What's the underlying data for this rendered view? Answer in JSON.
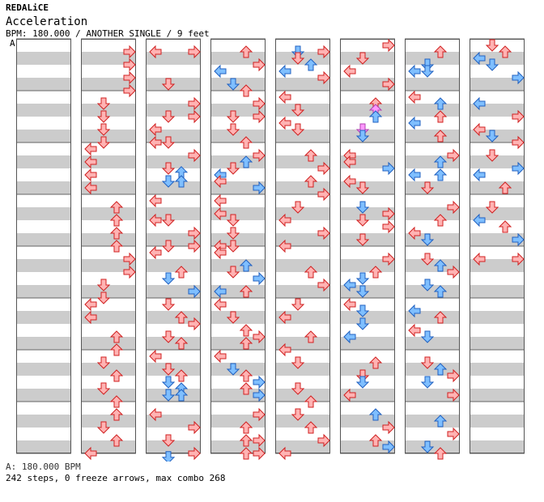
{
  "header": {
    "artist": "REDALiCE",
    "title": "Acceleration",
    "info": "BPM: 180.000 / ANOTHER SINGLE / 9 feet"
  },
  "chart_data": {
    "type": "step-chart",
    "columns": 8,
    "measures_per_column": 8,
    "lanes": [
      "left",
      "down",
      "up",
      "right"
    ],
    "colors": {
      "quarter": "#ffb3b3",
      "eighth": "#7fbfff",
      "sixteenth": "#ff99ff",
      "stroke_red": "#d02020",
      "stroke_blue": "#2060c0"
    },
    "bpm_marker": "A",
    "notes": [
      [],
      [
        [
          1,
          0.5,
          "right",
          4
        ],
        [
          1,
          1.5,
          "right",
          4
        ],
        [
          1,
          2.5,
          "right",
          4
        ],
        [
          1,
          3.5,
          "right",
          4
        ],
        [
          2,
          0.5,
          "down",
          4
        ],
        [
          2,
          1.5,
          "down",
          4
        ],
        [
          2,
          2.5,
          "down",
          4
        ],
        [
          2,
          3.5,
          "down",
          4
        ],
        [
          3,
          0,
          "left",
          4
        ],
        [
          3,
          1,
          "left",
          4
        ],
        [
          3,
          2,
          "left",
          4
        ],
        [
          3,
          3,
          "left",
          4
        ],
        [
          4,
          0.5,
          "up",
          4
        ],
        [
          4,
          1.5,
          "up",
          4
        ],
        [
          4,
          2.5,
          "up",
          4
        ],
        [
          4,
          3.5,
          "up",
          4
        ],
        [
          5,
          0.5,
          "right",
          4
        ],
        [
          5,
          1.5,
          "right",
          4
        ],
        [
          5,
          2.5,
          "down",
          4
        ],
        [
          5,
          3.5,
          "down",
          4
        ],
        [
          6,
          0,
          "left",
          4
        ],
        [
          6,
          1,
          "left",
          4
        ],
        [
          6,
          2.5,
          "up",
          4
        ],
        [
          6,
          3.5,
          "up",
          4
        ],
        [
          7,
          0.5,
          "down",
          4
        ],
        [
          7,
          1.5,
          "up",
          4
        ],
        [
          7,
          2.5,
          "down",
          4
        ],
        [
          7,
          3.5,
          "up",
          4
        ],
        [
          8,
          0.5,
          "up",
          4
        ],
        [
          8,
          1.5,
          "down",
          4
        ],
        [
          8,
          2.5,
          "up",
          4
        ],
        [
          8,
          3.5,
          "left",
          4
        ]
      ],
      [
        [
          1,
          0.5,
          "left",
          4
        ],
        [
          1,
          0.5,
          "right",
          4
        ],
        [
          1,
          3,
          "down",
          4
        ],
        [
          2,
          0.5,
          "right",
          4
        ],
        [
          2,
          1.5,
          "down",
          4
        ],
        [
          2,
          1.5,
          "right",
          4
        ],
        [
          2,
          2.5,
          "left",
          4
        ],
        [
          2,
          3.5,
          "left",
          4
        ],
        [
          2,
          3.5,
          "down",
          4
        ],
        [
          3,
          0.5,
          "right",
          4
        ],
        [
          3,
          1.5,
          "down",
          4
        ],
        [
          3,
          1.8,
          "up",
          8
        ],
        [
          3,
          2.5,
          "down",
          8
        ],
        [
          3,
          2.5,
          "up",
          8
        ],
        [
          4,
          0,
          "left",
          4
        ],
        [
          4,
          1.5,
          "left",
          4
        ],
        [
          4,
          1.5,
          "down",
          4
        ],
        [
          4,
          2.5,
          "right",
          4
        ],
        [
          4,
          3.5,
          "down",
          4
        ],
        [
          4,
          3.5,
          "right",
          4
        ],
        [
          5,
          0,
          "left",
          4
        ],
        [
          5,
          1.5,
          "up",
          4
        ],
        [
          5,
          2,
          "down",
          8
        ],
        [
          5,
          3,
          "right",
          8
        ],
        [
          6,
          0,
          "down",
          4
        ],
        [
          6,
          1,
          "up",
          4
        ],
        [
          6,
          1.5,
          "right",
          4
        ],
        [
          6,
          2.5,
          "down",
          4
        ],
        [
          6,
          3,
          "up",
          4
        ],
        [
          7,
          0,
          "left",
          4
        ],
        [
          7,
          1,
          "down",
          4
        ],
        [
          7,
          1.5,
          "up",
          4
        ],
        [
          7,
          2,
          "down",
          8
        ],
        [
          7,
          2.5,
          "up",
          8
        ],
        [
          7,
          3,
          "down",
          8
        ],
        [
          7,
          3,
          "up",
          8
        ],
        [
          8,
          0.5,
          "left",
          4
        ],
        [
          8,
          1.5,
          "right",
          4
        ],
        [
          8,
          2.5,
          "down",
          4
        ],
        [
          8,
          3.5,
          "right",
          4
        ],
        [
          8,
          3.8,
          "down",
          8
        ]
      ],
      [
        [
          1,
          0.5,
          "up",
          4
        ],
        [
          1,
          1.5,
          "right",
          4
        ],
        [
          1,
          2,
          "left",
          8
        ],
        [
          1,
          3,
          "down",
          8
        ],
        [
          1,
          3.5,
          "up",
          4
        ],
        [
          2,
          0.5,
          "right",
          4
        ],
        [
          2,
          1.5,
          "down",
          4
        ],
        [
          2,
          1.5,
          "right",
          4
        ],
        [
          2,
          2.5,
          "down",
          4
        ],
        [
          2,
          3.5,
          "up",
          4
        ],
        [
          3,
          0.5,
          "right",
          4
        ],
        [
          3,
          1,
          "up",
          8
        ],
        [
          3,
          1.5,
          "down",
          4
        ],
        [
          3,
          2,
          "left",
          8
        ],
        [
          3,
          2.5,
          "left",
          4
        ],
        [
          3,
          3,
          "right",
          8
        ],
        [
          4,
          0,
          "left",
          4
        ],
        [
          4,
          1,
          "left",
          4
        ],
        [
          4,
          1.5,
          "down",
          4
        ],
        [
          4,
          2.5,
          "down",
          4
        ],
        [
          4,
          3.5,
          "left",
          4
        ],
        [
          4,
          3.5,
          "down",
          4
        ],
        [
          5,
          0,
          "left",
          4
        ],
        [
          5,
          1,
          "up",
          8
        ],
        [
          5,
          1.5,
          "down",
          4
        ],
        [
          5,
          2,
          "right",
          8
        ],
        [
          5,
          3,
          "left",
          8
        ],
        [
          5,
          3,
          "up",
          4
        ],
        [
          6,
          0,
          "left",
          4
        ],
        [
          6,
          1,
          "down",
          4
        ],
        [
          6,
          2,
          "up",
          4
        ],
        [
          6,
          2.5,
          "right",
          4
        ],
        [
          6,
          3,
          "up",
          4
        ],
        [
          7,
          0,
          "left",
          4
        ],
        [
          7,
          1,
          "down",
          8
        ],
        [
          7,
          1.5,
          "up",
          4
        ],
        [
          7,
          2,
          "right",
          8
        ],
        [
          7,
          2.5,
          "up",
          4
        ],
        [
          7,
          3,
          "right",
          8
        ],
        [
          8,
          0.5,
          "right",
          4
        ],
        [
          8,
          1.5,
          "up",
          4
        ],
        [
          8,
          2.5,
          "up",
          4
        ],
        [
          8,
          2.5,
          "right",
          4
        ],
        [
          8,
          3.5,
          "up",
          4
        ],
        [
          8,
          3.5,
          "right",
          4
        ]
      ],
      [
        [
          1,
          0.5,
          "down",
          8
        ],
        [
          1,
          0.5,
          "right",
          4
        ],
        [
          1,
          1,
          "down",
          4
        ],
        [
          1,
          1.5,
          "up",
          8
        ],
        [
          1,
          2,
          "left",
          8
        ],
        [
          1,
          2.5,
          "right",
          4
        ],
        [
          2,
          0,
          "left",
          4
        ],
        [
          2,
          1,
          "down",
          4
        ],
        [
          2,
          2,
          "left",
          4
        ],
        [
          2,
          2.5,
          "down",
          4
        ],
        [
          3,
          0.5,
          "up",
          4
        ],
        [
          3,
          1.5,
          "right",
          4
        ],
        [
          3,
          2.5,
          "up",
          4
        ],
        [
          3,
          3.5,
          "right",
          4
        ],
        [
          4,
          0.5,
          "down",
          4
        ],
        [
          4,
          1.5,
          "left",
          4
        ],
        [
          4,
          2.5,
          "right",
          4
        ],
        [
          4,
          3.5,
          "left",
          4
        ],
        [
          5,
          1.5,
          "up",
          4
        ],
        [
          5,
          2.5,
          "right",
          4
        ],
        [
          6,
          0,
          "down",
          4
        ],
        [
          6,
          1,
          "left",
          4
        ],
        [
          6,
          2.5,
          "up",
          4
        ],
        [
          6,
          3.5,
          "left",
          4
        ],
        [
          7,
          0.5,
          "down",
          4
        ],
        [
          7,
          2.5,
          "down",
          4
        ],
        [
          7,
          3.5,
          "up",
          4
        ],
        [
          8,
          0.5,
          "down",
          4
        ],
        [
          8,
          1.5,
          "up",
          4
        ],
        [
          8,
          2.5,
          "right",
          4
        ],
        [
          8,
          3.5,
          "left",
          4
        ]
      ],
      [
        [
          1,
          0,
          "right",
          4
        ],
        [
          1,
          1,
          "down",
          4
        ],
        [
          1,
          2,
          "left",
          4
        ],
        [
          1,
          3,
          "right",
          4
        ],
        [
          2,
          0.5,
          "up",
          4
        ],
        [
          2,
          1,
          "up",
          16
        ],
        [
          2,
          1.5,
          "up",
          8
        ],
        [
          2,
          2.5,
          "down",
          16
        ],
        [
          2,
          3,
          "down",
          8
        ],
        [
          3,
          0.5,
          "left",
          4
        ],
        [
          3,
          1,
          "left",
          4
        ],
        [
          3,
          1.5,
          "right",
          8
        ],
        [
          3,
          2.5,
          "left",
          4
        ],
        [
          3,
          3,
          "down",
          4
        ],
        [
          4,
          0.5,
          "down",
          8
        ],
        [
          4,
          1,
          "right",
          4
        ],
        [
          4,
          1.5,
          "down",
          4
        ],
        [
          4,
          2,
          "right",
          4
        ],
        [
          4,
          3,
          "down",
          4
        ],
        [
          5,
          0.5,
          "right",
          4
        ],
        [
          5,
          1.5,
          "up",
          4
        ],
        [
          5,
          2,
          "down",
          8
        ],
        [
          5,
          2.5,
          "left",
          8
        ],
        [
          5,
          3,
          "down",
          8
        ],
        [
          6,
          0,
          "left",
          4
        ],
        [
          6,
          0.5,
          "down",
          8
        ],
        [
          6,
          1.5,
          "down",
          8
        ],
        [
          6,
          2.5,
          "left",
          8
        ],
        [
          7,
          0.5,
          "up",
          4
        ],
        [
          7,
          1.5,
          "down",
          4
        ],
        [
          7,
          2,
          "down",
          8
        ],
        [
          7,
          3,
          "left",
          4
        ],
        [
          8,
          0.5,
          "up",
          8
        ],
        [
          8,
          1.5,
          "right",
          4
        ],
        [
          8,
          2.5,
          "up",
          4
        ],
        [
          8,
          3,
          "right",
          8
        ]
      ],
      [
        [
          1,
          0.5,
          "up",
          4
        ],
        [
          1,
          1.5,
          "down",
          8
        ],
        [
          1,
          2,
          "left",
          8
        ],
        [
          1,
          2,
          "down",
          8
        ],
        [
          2,
          0,
          "left",
          4
        ],
        [
          2,
          0.5,
          "up",
          8
        ],
        [
          2,
          1.5,
          "up",
          4
        ],
        [
          2,
          2,
          "left",
          8
        ],
        [
          2,
          3,
          "up",
          4
        ],
        [
          3,
          0.5,
          "right",
          4
        ],
        [
          3,
          1,
          "up",
          8
        ],
        [
          3,
          2,
          "left",
          8
        ],
        [
          3,
          2,
          "up",
          8
        ],
        [
          3,
          3,
          "down",
          4
        ],
        [
          4,
          0.5,
          "right",
          4
        ],
        [
          4,
          1.5,
          "up",
          4
        ],
        [
          4,
          2.5,
          "left",
          4
        ],
        [
          4,
          3,
          "down",
          8
        ],
        [
          5,
          0.5,
          "down",
          4
        ],
        [
          5,
          1,
          "up",
          8
        ],
        [
          5,
          1.5,
          "right",
          4
        ],
        [
          5,
          2.5,
          "down",
          8
        ],
        [
          5,
          3,
          "up",
          8
        ],
        [
          6,
          0.5,
          "left",
          8
        ],
        [
          6,
          1,
          "up",
          4
        ],
        [
          6,
          2,
          "left",
          4
        ],
        [
          6,
          2.5,
          "down",
          8
        ],
        [
          7,
          0.5,
          "down",
          4
        ],
        [
          7,
          1,
          "up",
          8
        ],
        [
          7,
          1.5,
          "right",
          4
        ],
        [
          7,
          2,
          "down",
          8
        ],
        [
          7,
          3,
          "right",
          4
        ],
        [
          8,
          1,
          "up",
          8
        ],
        [
          8,
          2,
          "right",
          4
        ],
        [
          8,
          3,
          "down",
          8
        ],
        [
          8,
          3.5,
          "up",
          4
        ]
      ],
      [
        [
          1,
          0,
          "down",
          4
        ],
        [
          1,
          0.5,
          "up",
          4
        ],
        [
          1,
          1,
          "left",
          8
        ],
        [
          1,
          1.5,
          "down",
          8
        ],
        [
          1,
          2.5,
          "right",
          8
        ],
        [
          2,
          0.5,
          "left",
          8
        ],
        [
          2,
          1.5,
          "right",
          4
        ],
        [
          2,
          2.5,
          "left",
          4
        ],
        [
          2,
          3,
          "down",
          8
        ],
        [
          2,
          3.5,
          "right",
          4
        ],
        [
          3,
          0.5,
          "down",
          4
        ],
        [
          3,
          1.5,
          "right",
          8
        ],
        [
          3,
          2,
          "left",
          8
        ],
        [
          3,
          3,
          "up",
          4
        ],
        [
          4,
          0.5,
          "down",
          4
        ],
        [
          4,
          1.5,
          "left",
          8
        ],
        [
          4,
          2,
          "up",
          4
        ],
        [
          4,
          3,
          "right",
          8
        ],
        [
          5,
          0.5,
          "left",
          4
        ],
        [
          5,
          0.5,
          "right",
          4
        ]
      ]
    ]
  },
  "footer": {
    "bpm": "A: 180.000 BPM",
    "stats": "242 steps, 0 freeze arrows, max combo 268"
  }
}
